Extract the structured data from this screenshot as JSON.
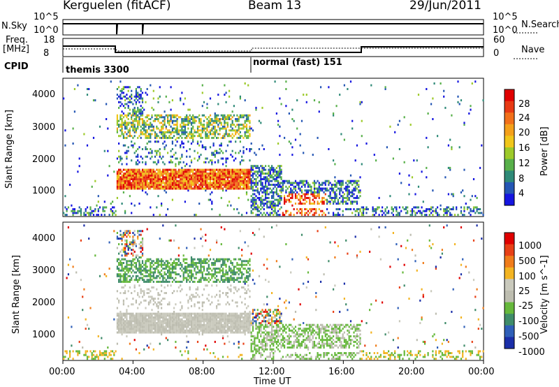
{
  "header": {
    "station": "Kerguelen  (fitACF)",
    "beam": "Beam 13",
    "date": "29/Jun/2011"
  },
  "nsky_panel": {
    "left_label": "N.Sky",
    "left_ticks": [
      "10^5",
      "10^0"
    ],
    "right_ticks": [
      "10^5",
      "10^0"
    ],
    "right_label": "N.Search"
  },
  "freq_panel": {
    "left_label_1": "Freq.",
    "left_label_2": "[MHz]",
    "left_ticks": [
      "18",
      "8"
    ],
    "right_ticks": [
      "60",
      "0"
    ],
    "right_label": "Nave"
  },
  "cpid": {
    "label": "CPID",
    "mode_1": "themis 3300",
    "mode_2": "normal (fast) 151"
  },
  "power_panel": {
    "ylabel": "Slant Range [km]",
    "yticks": [
      "4000",
      "3000",
      "2000",
      "1000"
    ],
    "colorbar_label": "Power [dB]",
    "colorbar_ticks": [
      "28",
      "24",
      "20",
      "16",
      "12",
      "8",
      "4"
    ],
    "colors": [
      "#1515e0",
      "#2456b4",
      "#2f8a78",
      "#58b04a",
      "#9dca2a",
      "#f0c61a",
      "#f4a01a",
      "#f2701a",
      "#e83a14",
      "#e00000"
    ]
  },
  "velocity_panel": {
    "ylabel": "Slant Range [km]",
    "yticks": [
      "4000",
      "3000",
      "2000",
      "1000"
    ],
    "colorbar_label": "Velocity [m s^-1]",
    "colorbar_ticks": [
      "1000",
      "500",
      "100",
      "25",
      "-25",
      "-100",
      "-500",
      "-1000"
    ],
    "colors": [
      "#1a2ea8",
      "#2f5fb8",
      "#3f8c6a",
      "#66b83c",
      "#bdbdb0",
      "#c9c9bc",
      "#f3b422",
      "#f07c1a",
      "#e84016",
      "#e00000"
    ]
  },
  "xaxis": {
    "label": "Time UT",
    "ticks": [
      "00:00",
      "04:00",
      "08:00",
      "12:00",
      "16:00",
      "20:00",
      "00:00"
    ]
  },
  "chart_data": {
    "type": "heatmap",
    "title": "Kerguelen  (fitACF)  Beam 13  29/Jun/2011",
    "xlabel": "Time UT",
    "ylabel": "Slant Range [km]",
    "x_range_hours": [
      0,
      24
    ],
    "y_range_km": [
      180,
      4600
    ],
    "ionospheric_band_km": [
      1000,
      1600
    ],
    "scatter_start_UT": 3.0,
    "scatter_end_UT": 17.0,
    "cpid_change_UT": 10.6,
    "freq_step_UT": [
      3.0,
      17.0
    ],
    "power_range_dB": [
      0,
      30
    ],
    "velocity_range_ms": [
      -1000,
      1000
    ]
  }
}
